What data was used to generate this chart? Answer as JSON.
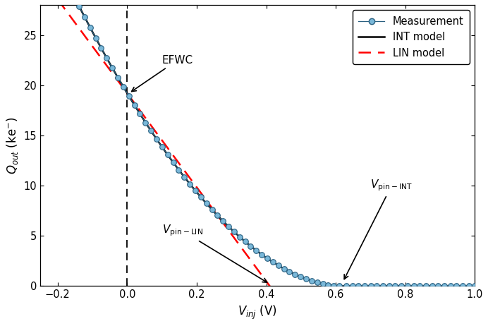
{
  "xlim": [
    -0.25,
    1.0
  ],
  "ylim": [
    0,
    28
  ],
  "xlabel": "V$_\\mathregular{inj}$ (V)",
  "ylabel": "Q$_\\mathregular{out}$ (ke$^-$)",
  "xticks": [
    -0.2,
    0.0,
    0.2,
    0.4,
    0.6,
    0.8,
    1.0
  ],
  "yticks": [
    0,
    5,
    10,
    15,
    20,
    25
  ],
  "measurement_color": "#7ab8d9",
  "measurement_edge_color": "#2a6080",
  "int_model_color": "#000000",
  "lin_model_color": "#ff0000",
  "background_color": "#ffffff",
  "Q0": 19.2,
  "slope_lin": -46.8,
  "vpin_int": 0.62,
  "alpha": 1.85,
  "figsize": [
    6.92,
    4.62
  ],
  "dpi": 100
}
